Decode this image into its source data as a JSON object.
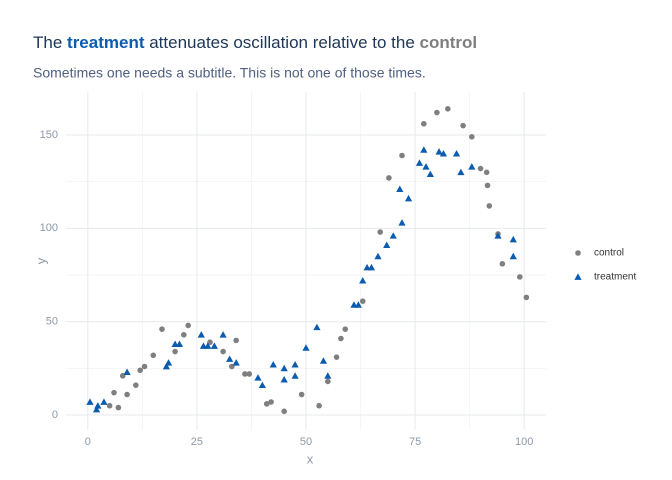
{
  "chart_data": {
    "type": "scatter",
    "title": [
      {
        "text": "The ",
        "bold": false,
        "color": "#1d3557"
      },
      {
        "text": "treatment",
        "bold": true,
        "color": "#0b5bae"
      },
      {
        "text": " attenuates oscillation relative to the ",
        "bold": false,
        "color": "#1d3557"
      },
      {
        "text": "control",
        "bold": true,
        "color": "#7f7f7f"
      }
    ],
    "subtitle": "Sometimes one needs a subtitle. This is not one of those times.",
    "x_label": "x",
    "y_label": "y",
    "xlim": [
      -5,
      105
    ],
    "ylim": [
      -8,
      173
    ],
    "xticks": [
      0,
      25,
      50,
      75,
      100
    ],
    "yticks": [
      0,
      50,
      100,
      150
    ],
    "xminorticks": [
      12.5,
      37.5,
      62.5,
      87.5
    ],
    "yminorticks": [
      25,
      75,
      125
    ],
    "grid": true,
    "legend": "right",
    "series": [
      {
        "name": "control",
        "color": "#7f7f7f",
        "marker": "circle",
        "x": [
          5,
          7,
          6,
          8,
          9,
          11,
          12,
          13,
          15,
          17,
          20,
          22,
          23,
          28,
          31,
          34,
          33,
          36,
          37,
          41,
          42,
          45,
          49,
          53,
          55,
          57,
          58,
          59,
          63,
          67,
          69,
          72,
          77,
          80,
          82.5,
          86,
          88,
          90,
          91.4,
          91.6,
          92,
          94,
          95,
          99,
          100.5
        ],
        "values": [
          5,
          4,
          12,
          21,
          11,
          16,
          24,
          26,
          32,
          46,
          34,
          43,
          48,
          39,
          34,
          40,
          26,
          22,
          22,
          6,
          7,
          2,
          11,
          5,
          18,
          31,
          41,
          46,
          61,
          98,
          127,
          139,
          156,
          162,
          164,
          155,
          149,
          132,
          130,
          123,
          112,
          97,
          81,
          74,
          63
        ]
      },
      {
        "name": "treatment",
        "color": "#0b5bae",
        "marker": "triangle",
        "x": [
          0.5,
          2,
          2.3,
          3.7,
          9,
          18,
          18.5,
          20,
          21,
          26,
          26.5,
          27.5,
          29,
          31,
          32.5,
          34,
          39,
          40,
          42.5,
          45,
          45,
          47.5,
          47.5,
          50,
          52.5,
          54,
          55,
          61,
          62,
          63,
          64,
          65,
          66.5,
          68.5,
          70,
          71.5,
          72,
          73.5,
          76,
          77,
          77.5,
          78.5,
          80.5,
          81.5,
          84.5,
          85.5,
          88,
          94,
          97.5,
          97.5
        ],
        "values": [
          7,
          3,
          5,
          7,
          23,
          26,
          28,
          38,
          38,
          43,
          37,
          37,
          37,
          43,
          30,
          28,
          20,
          16,
          27,
          25,
          19,
          27,
          21,
          36,
          47,
          29,
          21,
          59,
          59,
          72,
          79,
          79,
          85,
          91,
          96,
          121,
          103,
          116,
          135,
          142,
          133,
          129,
          141,
          140,
          140,
          130,
          133,
          96,
          94,
          85
        ]
      }
    ]
  }
}
